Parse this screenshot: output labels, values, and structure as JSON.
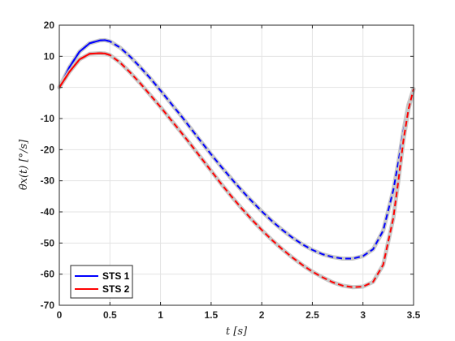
{
  "chart_data": {
    "type": "line",
    "title": "",
    "xlabel": "t [s]",
    "ylabel": "θ̇x(t) [°/s]",
    "xlim": [
      0,
      3.5
    ],
    "ylim": [
      -70,
      20
    ],
    "xticks": [
      0,
      0.5,
      1,
      1.5,
      2,
      2.5,
      3,
      3.5
    ],
    "xtick_labels": [
      "0",
      "0.5",
      "1",
      "1.5",
      "2",
      "2.5",
      "3",
      "3.5"
    ],
    "yticks": [
      20,
      10,
      0,
      -10,
      -20,
      -30,
      -40,
      -50,
      -60,
      -70
    ],
    "ytick_labels": [
      "20",
      "10",
      "0",
      "-10",
      "-20",
      "-30",
      "-40",
      "-50",
      "-60",
      "-70"
    ],
    "grid": true,
    "legend_position": "bottom-left",
    "x": [
      0,
      0.1,
      0.2,
      0.3,
      0.4,
      0.45,
      0.5,
      0.6,
      0.7,
      0.8,
      0.9,
      1.0,
      1.1,
      1.2,
      1.3,
      1.4,
      1.5,
      1.6,
      1.7,
      1.8,
      1.9,
      2.0,
      2.1,
      2.2,
      2.3,
      2.4,
      2.5,
      2.6,
      2.7,
      2.8,
      2.9,
      3.0,
      3.1,
      3.2,
      3.3,
      3.35,
      3.4,
      3.45,
      3.5
    ],
    "series": [
      {
        "name": "STS 1",
        "color": "#0000ff",
        "solid_until_x": 0.55,
        "values": [
          0,
          6.5,
          11.5,
          14.2,
          15.1,
          15.2,
          14.8,
          12.8,
          9.9,
          6.5,
          2.9,
          -1.0,
          -5.0,
          -9.0,
          -13.2,
          -17.4,
          -21.5,
          -25.5,
          -29.3,
          -33.0,
          -36.5,
          -39.8,
          -42.9,
          -45.7,
          -48.2,
          -50.4,
          -52.2,
          -53.6,
          -54.5,
          -55.0,
          -55.0,
          -54.2,
          -52.0,
          -46.0,
          -33.0,
          -24.0,
          -14.0,
          -5.5,
          -0.5
        ]
      },
      {
        "name": "STS 2",
        "color": "#ff0000",
        "solid_until_x": 0.55,
        "values": [
          0,
          5.0,
          9.0,
          10.8,
          11.0,
          10.9,
          10.4,
          8.0,
          4.8,
          1.3,
          -2.5,
          -6.3,
          -10.3,
          -14.3,
          -18.4,
          -22.6,
          -26.8,
          -31.0,
          -35.0,
          -38.8,
          -42.4,
          -45.8,
          -49.0,
          -51.9,
          -54.6,
          -57.0,
          -59.2,
          -61.0,
          -62.6,
          -63.7,
          -64.2,
          -64.0,
          -62.5,
          -57.0,
          -42.0,
          -30.0,
          -17.0,
          -7.0,
          -0.5
        ]
      }
    ]
  }
}
